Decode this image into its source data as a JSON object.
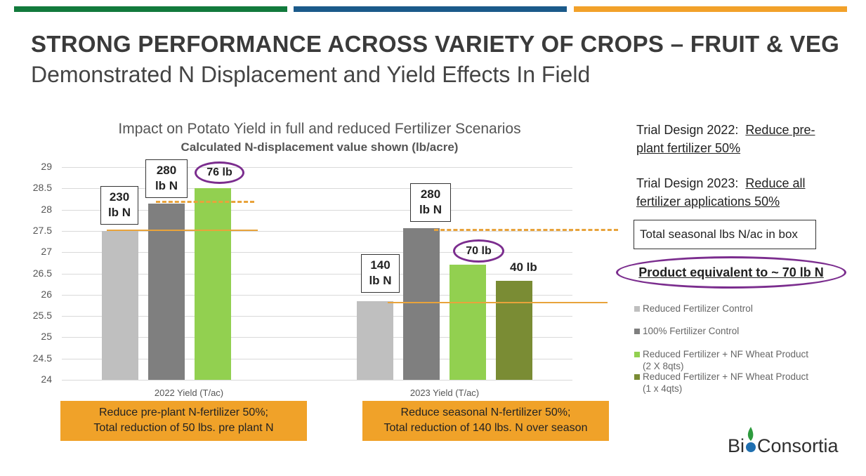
{
  "colors": {
    "top_green": "#127a3c",
    "top_blue": "#1b5a8a",
    "top_orange": "#f2a12a",
    "reduced_control": "#bfbfbf",
    "full_control": "#7f7f7f",
    "nf_2x8": "#92d050",
    "nf_1x4": "#7a8c34",
    "accent_orange": "#f0a229",
    "oval_purple": "#7b2d8e"
  },
  "header": {
    "title": "STRONG PERFORMANCE ACROSS VARIETY OF CROPS – FRUIT & VEG",
    "subtitle": "Demonstrated N Displacement and Yield Effects In Field"
  },
  "chart_data": {
    "type": "bar",
    "title": "Impact on Potato Yield in full and reduced Fertilizer Scenarios",
    "subtitle": "Calculated N-displacement value shown (lb/acre)",
    "categories": [
      "2022 Yield (T/ac)",
      "2023 Yield (T/ac)"
    ],
    "yticks": [
      "29",
      "28.5",
      "28",
      "27.5",
      "27",
      "26.5",
      "26",
      "25.5",
      "25",
      "24.5",
      "24"
    ],
    "ylim": [
      24,
      29
    ],
    "series": [
      {
        "name": "Reduced Fertilizer Control",
        "values": [
          27.5,
          25.85
        ]
      },
      {
        "name": "100% Fertilizer Control",
        "values": [
          28.15,
          27.57
        ]
      },
      {
        "name": "Reduced Fertilizer + NF Wheat Product (2 X 8qts)",
        "values": [
          28.5,
          26.7
        ]
      },
      {
        "name": "Reduced Fertilizer + NF Wheat Product (1 x 4qts)",
        "values": [
          null,
          26.33
        ]
      }
    ],
    "annotations": {
      "y2022_reduced_line1": "230",
      "y2022_reduced_line2": "lb N",
      "y2022_full_line1": "280",
      "y2022_full_line2": "lb N",
      "y2022_product": "76 lb",
      "y2023_reduced_line1": "140",
      "y2023_reduced_line2": "lb N",
      "y2023_full_line1": "280",
      "y2023_full_line2": "lb N",
      "y2023_product_a": "70 lb",
      "y2023_product_b": "40 lb"
    }
  },
  "notes": {
    "box_2022_line1": "Reduce pre-plant N-fertilizer 50%;",
    "box_2022_line2": "Total reduction of 50 lbs. pre plant N",
    "box_2023_line1": "Reduce seasonal N-fertilizer 50%;",
    "box_2023_line2": "Total reduction of 140 lbs. N over season"
  },
  "trial": {
    "design_2022_label": "Trial Design 2022:",
    "design_2022_value_a": "Reduce pre-",
    "design_2022_value_b": "plant fertilizer 50%",
    "design_2023_label": "Trial Design 2023:",
    "design_2023_value_a": "Reduce all",
    "design_2023_value_b": "fertilizer applications 50%",
    "total_box": "Total seasonal lbs N/ac in box",
    "product_equivalent": "Product equivalent to ~ 70 lb N"
  },
  "legend": [
    {
      "label": "Reduced Fertilizer Control"
    },
    {
      "label": "100% Fertilizer Control"
    },
    {
      "label": "Reduced Fertilizer + NF Wheat Product",
      "sub": "(2 X 8qts)"
    },
    {
      "label": "Reduced Fertilizer + NF Wheat Product",
      "sub": "(1 x 4qts)"
    }
  ],
  "logo": {
    "text_a": "Bi",
    "text_b": "Consortia"
  }
}
